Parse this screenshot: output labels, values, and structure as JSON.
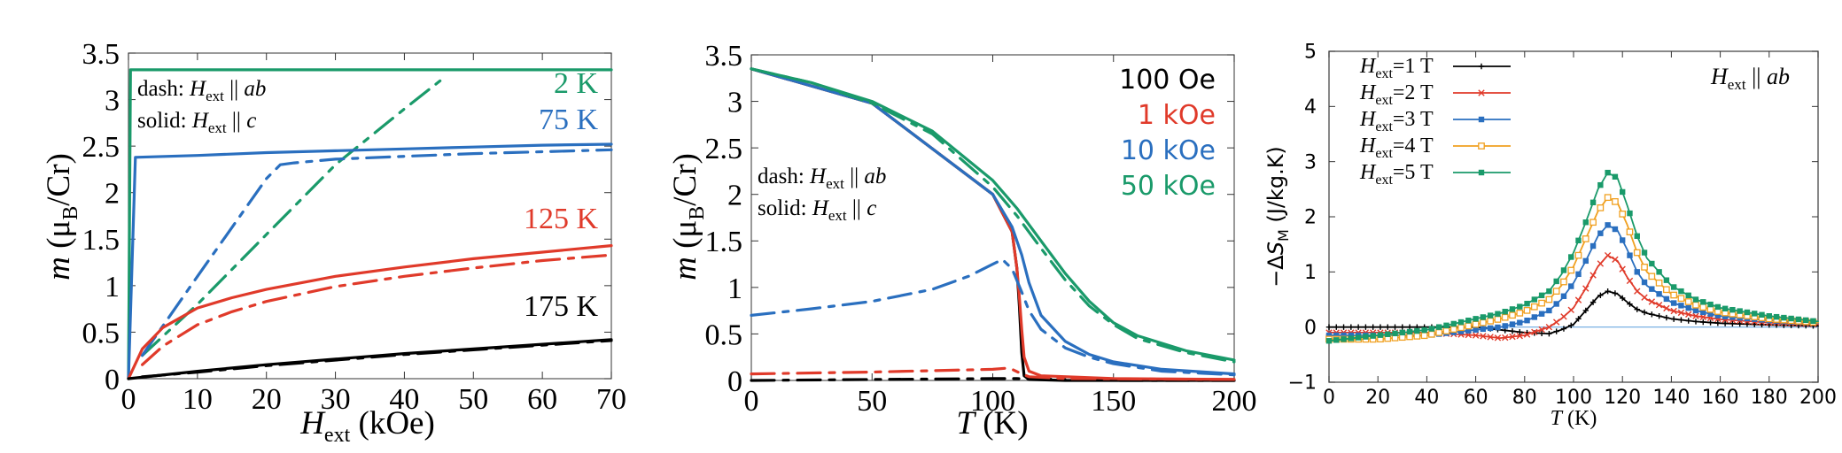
{
  "chart_data": [
    {
      "type": "line",
      "xlabel": {
        "main": "H",
        "sub": "ext",
        "rest": " (kOe)"
      },
      "ylabel": {
        "main": "m",
        "rest": " (μ",
        "sub": "B",
        "tail": "/Cr)"
      },
      "xlim": [
        0,
        70
      ],
      "ylim": [
        0,
        3.5
      ],
      "xticks": [
        0,
        10,
        20,
        30,
        40,
        50,
        60,
        70
      ],
      "yticks": [
        "0",
        "0.5",
        "1",
        "1.5",
        "2",
        "2.5",
        "3",
        "3.5"
      ],
      "legend_lines": [
        {
          "prefix": "dash: ",
          "main": "H",
          "sub": "ext",
          "rest": " || ab"
        },
        {
          "prefix": "solid: ",
          "main": "H",
          "sub": "ext",
          "rest": " || c"
        }
      ],
      "series": [
        {
          "name": "2 K",
          "color": "#1a9a6a",
          "solid": {
            "x": [
              0,
              0.3,
              70
            ],
            "y": [
              0,
              3.32,
              3.32
            ]
          },
          "dash": {
            "x": [
              2,
              10,
              20,
              30,
              40,
              46
            ],
            "y": [
              0.25,
              0.8,
              1.55,
              2.3,
              2.9,
              3.25
            ]
          }
        },
        {
          "name": "75 K",
          "color": "#2a6fbf",
          "solid": {
            "x": [
              0,
              1,
              10,
              20,
              30,
              40,
              50,
              60,
              70
            ],
            "y": [
              0,
              2.38,
              2.4,
              2.43,
              2.45,
              2.47,
              2.49,
              2.51,
              2.52
            ]
          },
          "dash": {
            "x": [
              2,
              10,
              20,
              22,
              24,
              30,
              40,
              50,
              60,
              70
            ],
            "y": [
              0.25,
              1.1,
              2.15,
              2.3,
              2.32,
              2.36,
              2.39,
              2.42,
              2.44,
              2.46
            ]
          }
        },
        {
          "name": "125 K",
          "color": "#e03a2a",
          "solid": {
            "x": [
              0,
              2,
              5,
              10,
              15,
              20,
              30,
              40,
              50,
              60,
              70
            ],
            "y": [
              0,
              0.32,
              0.55,
              0.76,
              0.87,
              0.96,
              1.1,
              1.2,
              1.29,
              1.36,
              1.43
            ]
          },
          "dash": {
            "x": [
              2,
              5,
              10,
              15,
              20,
              30,
              40,
              50,
              60,
              70
            ],
            "y": [
              0.15,
              0.35,
              0.58,
              0.72,
              0.83,
              0.99,
              1.1,
              1.19,
              1.27,
              1.33
            ]
          }
        },
        {
          "name": "175 K",
          "color": "#000000",
          "solid": {
            "x": [
              0,
              10,
              20,
              30,
              40,
              50,
              60,
              70
            ],
            "y": [
              0,
              0.08,
              0.15,
              0.21,
              0.27,
              0.32,
              0.37,
              0.42
            ]
          },
          "dash": {
            "x": [
              2,
              10,
              20,
              30,
              40,
              50,
              60,
              70
            ],
            "y": [
              0.02,
              0.07,
              0.14,
              0.2,
              0.26,
              0.31,
              0.36,
              0.41
            ]
          }
        }
      ]
    },
    {
      "type": "line",
      "xlabel": {
        "main": "T",
        "rest": " (K)"
      },
      "ylabel": {
        "main": "m",
        "rest": " (μ",
        "sub": "B",
        "tail": "/Cr)"
      },
      "xlim": [
        0,
        200
      ],
      "ylim": [
        0,
        3.5
      ],
      "xticks": [
        0,
        50,
        100,
        150,
        200
      ],
      "yticks": [
        "0",
        "0.5",
        "1",
        "1.5",
        "2",
        "2.5",
        "3",
        "3.5"
      ],
      "legend_lines": [
        {
          "prefix": "dash: ",
          "main": "H",
          "sub": "ext",
          "rest": " || ab"
        },
        {
          "prefix": "solid: ",
          "main": "H",
          "sub": "ext",
          "rest": " || c"
        }
      ],
      "series": [
        {
          "name": "100 Oe",
          "color": "#000000",
          "solid": {
            "x": [
              0,
              50,
              100,
              108,
              110,
              111,
              112,
              113,
              115,
              130,
              150,
              200
            ],
            "y": [
              3.35,
              2.98,
              2.0,
              1.6,
              1.2,
              0.8,
              0.3,
              0.05,
              0.01,
              0.0,
              0.0,
              0.0
            ]
          },
          "dash": {
            "x": [
              0,
              50,
              100,
              110,
              150,
              200
            ],
            "y": [
              0.0,
              0.01,
              0.02,
              0.02,
              0.0,
              0.0
            ]
          }
        },
        {
          "name": "1 kOe",
          "color": "#e03a2a",
          "solid": {
            "x": [
              0,
              50,
              100,
              108,
              110,
              111,
              112,
              113,
              115,
              120,
              150,
              200
            ],
            "y": [
              3.35,
              2.98,
              2.0,
              1.6,
              1.2,
              0.9,
              0.55,
              0.25,
              0.1,
              0.05,
              0.02,
              0.01
            ]
          },
          "dash": {
            "x": [
              0,
              50,
              100,
              105,
              108,
              112,
              115,
              130,
              200
            ],
            "y": [
              0.07,
              0.09,
              0.12,
              0.13,
              0.12,
              0.07,
              0.04,
              0.02,
              0.01
            ]
          }
        },
        {
          "name": "10 kOe",
          "color": "#2a6fbf",
          "solid": {
            "x": [
              0,
              50,
              100,
              108,
              112,
              115,
              120,
              130,
              140,
              150,
              170,
              200
            ],
            "y": [
              3.35,
              2.98,
              2.0,
              1.65,
              1.35,
              1.05,
              0.7,
              0.42,
              0.28,
              0.2,
              0.12,
              0.07
            ]
          },
          "dash": {
            "x": [
              0,
              25,
              50,
              75,
              90,
              100,
              104,
              108,
              112,
              115,
              120,
              130,
              140,
              150,
              170,
              200
            ],
            "y": [
              0.7,
              0.77,
              0.85,
              0.98,
              1.12,
              1.25,
              1.3,
              1.2,
              0.95,
              0.75,
              0.55,
              0.35,
              0.25,
              0.18,
              0.1,
              0.06
            ]
          }
        },
        {
          "name": "50 kOe",
          "color": "#1a9a6a",
          "solid": {
            "x": [
              0,
              25,
              50,
              75,
              100,
              110,
              120,
              130,
              140,
              150,
              160,
              180,
              200
            ],
            "y": [
              3.35,
              3.2,
              3.0,
              2.68,
              2.15,
              1.85,
              1.5,
              1.15,
              0.85,
              0.62,
              0.48,
              0.32,
              0.22
            ]
          },
          "dash": {
            "x": [
              0,
              25,
              50,
              75,
              100,
              110,
              120,
              130,
              140,
              150,
              160,
              180,
              200
            ],
            "y": [
              3.35,
              3.2,
              2.98,
              2.65,
              2.08,
              1.77,
              1.42,
              1.08,
              0.8,
              0.6,
              0.45,
              0.3,
              0.2
            ]
          }
        }
      ]
    },
    {
      "type": "line",
      "xlabel": {
        "main": "T",
        "rest": " (K)"
      },
      "ylabel": {
        "prefix": "−ΔS",
        "sub": "M",
        "rest": " (J/kg.K)"
      },
      "xlim": [
        0,
        200
      ],
      "ylim": [
        -1,
        5
      ],
      "xticks": [
        0,
        20,
        40,
        60,
        80,
        100,
        120,
        140,
        160,
        180,
        200
      ],
      "yticks": [
        "−1",
        "0",
        "1",
        "2",
        "3",
        "4",
        "5"
      ],
      "annotation": {
        "main": "H",
        "sub": "ext",
        "rest": " || ab"
      },
      "series": [
        {
          "name": "Hext=1 T",
          "label_main": "H",
          "label_sub": "ext",
          "label_rest": "=1 T",
          "color": "#000000",
          "marker": "plus",
          "x": [
            0,
            20,
            40,
            60,
            70,
            80,
            90,
            95,
            100,
            105,
            110,
            114,
            118,
            122,
            126,
            130,
            140,
            150,
            160,
            180,
            200
          ],
          "y": [
            0.0,
            0.0,
            0.0,
            0.0,
            -0.05,
            -0.1,
            -0.12,
            -0.05,
            0.05,
            0.3,
            0.55,
            0.65,
            0.6,
            0.45,
            0.32,
            0.25,
            0.15,
            0.1,
            0.07,
            0.04,
            0.02
          ]
        },
        {
          "name": "Hext=2 T",
          "label_main": "H",
          "label_sub": "ext",
          "label_rest": "=2 T",
          "color": "#e03a2a",
          "marker": "x",
          "x": [
            0,
            20,
            40,
            60,
            70,
            80,
            90,
            95,
            100,
            105,
            110,
            114,
            118,
            122,
            126,
            130,
            140,
            150,
            160,
            180,
            200
          ],
          "y": [
            -0.1,
            -0.1,
            -0.1,
            -0.15,
            -0.2,
            -0.15,
            0.0,
            0.15,
            0.35,
            0.7,
            1.1,
            1.3,
            1.2,
            0.9,
            0.65,
            0.5,
            0.3,
            0.2,
            0.14,
            0.08,
            0.05
          ]
        },
        {
          "name": "Hext=3 T",
          "label_main": "H",
          "label_sub": "ext",
          "label_rest": "=3 T",
          "color": "#2a6fbf",
          "marker": "sq",
          "x": [
            0,
            20,
            40,
            50,
            60,
            70,
            80,
            90,
            95,
            100,
            105,
            110,
            114,
            118,
            122,
            126,
            130,
            140,
            150,
            160,
            180,
            200
          ],
          "y": [
            -0.15,
            -0.15,
            -0.15,
            -0.1,
            -0.05,
            0.0,
            0.1,
            0.3,
            0.5,
            0.8,
            1.2,
            1.65,
            1.85,
            1.75,
            1.4,
            1.0,
            0.75,
            0.45,
            0.3,
            0.2,
            0.12,
            0.07
          ]
        },
        {
          "name": "Hext=4 T",
          "label_main": "H",
          "label_sub": "ext",
          "label_rest": "=4 T",
          "color": "#f0a020",
          "marker": "osq",
          "x": [
            0,
            20,
            40,
            50,
            60,
            70,
            80,
            90,
            95,
            100,
            105,
            110,
            114,
            118,
            122,
            126,
            130,
            140,
            150,
            160,
            180,
            200
          ],
          "y": [
            -0.22,
            -0.22,
            -0.15,
            -0.05,
            0.05,
            0.15,
            0.28,
            0.5,
            0.75,
            1.1,
            1.6,
            2.1,
            2.35,
            2.25,
            1.85,
            1.35,
            1.0,
            0.6,
            0.4,
            0.27,
            0.15,
            0.08
          ]
        },
        {
          "name": "Hext=5 T",
          "label_main": "H",
          "label_sub": "ext",
          "label_rest": "=5 T",
          "color": "#1a9a6a",
          "marker": "sq",
          "x": [
            0,
            20,
            40,
            50,
            60,
            70,
            80,
            90,
            95,
            100,
            105,
            110,
            114,
            118,
            122,
            126,
            130,
            140,
            150,
            160,
            180,
            200
          ],
          "y": [
            -0.25,
            -0.15,
            -0.05,
            0.05,
            0.15,
            0.25,
            0.4,
            0.65,
            0.95,
            1.35,
            1.9,
            2.5,
            2.8,
            2.7,
            2.2,
            1.65,
            1.25,
            0.75,
            0.5,
            0.35,
            0.2,
            0.1
          ]
        }
      ]
    }
  ]
}
